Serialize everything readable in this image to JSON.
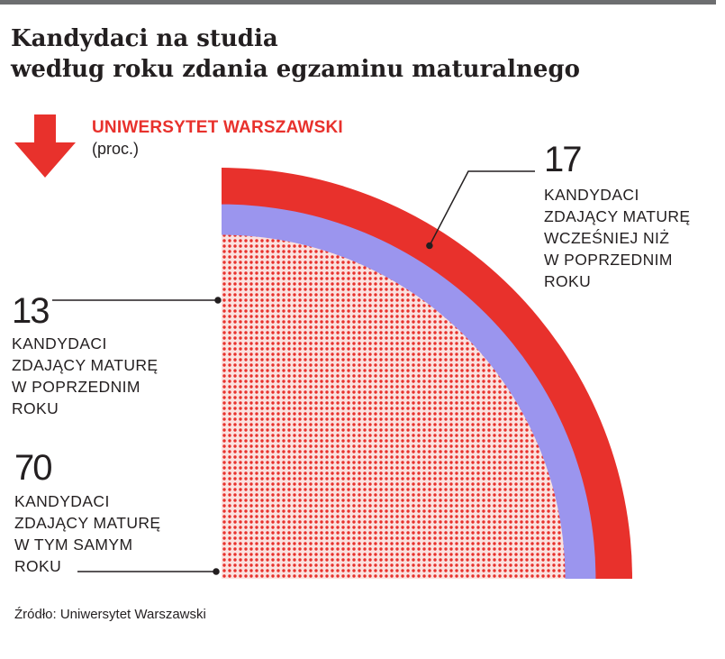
{
  "title": {
    "line1": "Kandydaci na studia",
    "line2": "według roku zdania egzaminu maturalnego"
  },
  "subtitle": {
    "institution": "UNIWERSYTET WARSZAWSKI",
    "unit": "(proc.)"
  },
  "source": "Źródło: Uniwersytet Warszawski",
  "colors": {
    "red": "#e8312c",
    "lavender": "#9b95ee",
    "dots": "#e8312c",
    "text": "#231f20"
  },
  "chart_data": {
    "type": "pie",
    "title": "Kandydaci na studia według roku zdania egzaminu maturalnego",
    "unit": "proc.",
    "series": [
      {
        "name": "Kandydaci zdający maturę w tym samym roku",
        "value": 70
      },
      {
        "name": "Kandydaci zdający maturę w poprzednim roku",
        "value": 13
      },
      {
        "name": "Kandydaci zdający maturę wcześniej niż w poprzednim roku",
        "value": 17
      }
    ]
  },
  "labels": {
    "earlier": {
      "value": "17",
      "lines": [
        "KANDYDACI",
        "ZDAJĄCY MATURĘ",
        "WCZEŚNIEJ NIŻ",
        "W POPRZEDNIM",
        "ROKU"
      ]
    },
    "previous": {
      "value": "13",
      "lines": [
        "KANDYDACI",
        "ZDAJĄCY MATURĘ",
        "W POPRZEDNIM",
        "ROKU"
      ]
    },
    "same": {
      "value": "70",
      "lines": [
        "KANDYDACI",
        "ZDAJĄCY MATURĘ",
        "W TYM SAMYM",
        "ROKU"
      ]
    }
  }
}
